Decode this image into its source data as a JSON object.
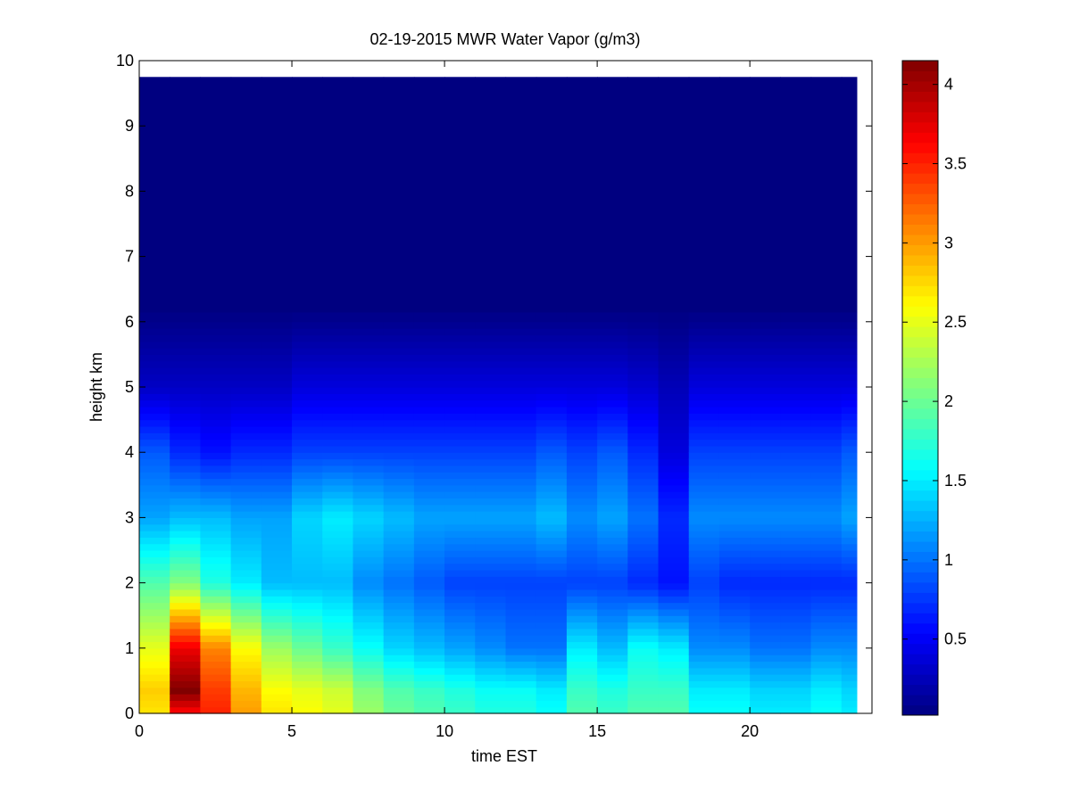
{
  "chart_data": {
    "type": "heatmap",
    "title": "02-19-2015 MWR Water Vapor (g/m3)",
    "xlabel": "time EST",
    "ylabel": "height km",
    "xlim": [
      0,
      24
    ],
    "ylim": [
      0,
      10
    ],
    "x_ticks": [
      "0",
      "5",
      "10",
      "15",
      "20"
    ],
    "y_ticks": [
      "0",
      "1",
      "2",
      "3",
      "4",
      "5",
      "6",
      "7",
      "8",
      "9",
      "10"
    ],
    "colorbar": {
      "colormap": "jet",
      "range": [
        0.02,
        4.15
      ],
      "ticks": [
        "0.5",
        "1",
        "1.5",
        "2",
        "2.5",
        "3",
        "3.5",
        "4"
      ]
    },
    "grid": false,
    "time_hours": [
      0,
      1,
      2,
      3,
      4,
      5,
      6,
      7,
      8,
      9,
      10,
      11,
      12,
      13,
      14,
      15,
      16,
      17,
      18,
      19,
      20,
      21,
      22,
      23
    ],
    "height_km": [
      0.05,
      0.15,
      0.25,
      0.35,
      0.45,
      0.55,
      0.65,
      0.75,
      0.85,
      0.95,
      1.05,
      1.15,
      1.25,
      1.35,
      1.45,
      1.55,
      1.65,
      1.75,
      1.85,
      1.95,
      2.05,
      2.15,
      2.25,
      2.35,
      2.45,
      2.55,
      2.65,
      2.75,
      2.85,
      2.95,
      3.05,
      3.15,
      3.25,
      3.35,
      3.45,
      3.55,
      3.65,
      3.75,
      3.85,
      3.95,
      4.05,
      4.15,
      4.25,
      4.35,
      4.45,
      4.55,
      4.65,
      4.75,
      4.85,
      4.95,
      5.05,
      5.15,
      5.25,
      5.35,
      5.45,
      5.55,
      5.65,
      5.75,
      5.85,
      5.95,
      6.05,
      6.25,
      6.75,
      7.25,
      7.75,
      8.25,
      8.75,
      9.25,
      9.75
    ],
    "profiles": {
      "surface": [
        2.7,
        3.6,
        3.5,
        3.0,
        2.7,
        2.6,
        2.5,
        2.2,
        2.0,
        1.9,
        1.8,
        1.7,
        1.7,
        1.6,
        1.9,
        1.8,
        1.9,
        1.9,
        1.6,
        1.6,
        1.5,
        1.5,
        1.6,
        1.5
      ],
      "peak_value": [
        2.8,
        4.15,
        3.4,
        2.9,
        2.6,
        2.5,
        2.4,
        2.1,
        1.9,
        1.8,
        1.7,
        1.6,
        1.6,
        1.5,
        1.8,
        1.7,
        1.8,
        1.8,
        1.5,
        1.5,
        1.4,
        1.4,
        1.5,
        1.4
      ],
      "note_value_at_1km": [
        2.5,
        3.7,
        3.1,
        2.6,
        2.2,
        2.0,
        1.8,
        1.6,
        1.4,
        1.3,
        1.2,
        1.1,
        1.0,
        1.0,
        1.5,
        1.3,
        1.6,
        1.5,
        1.1,
        1.1,
        1.0,
        1.0,
        1.1,
        1.1
      ],
      "value_at_2km": [
        1.9,
        2.1,
        1.7,
        1.5,
        1.3,
        1.3,
        1.3,
        1.1,
        1.0,
        0.9,
        0.8,
        0.8,
        0.8,
        0.8,
        0.8,
        0.8,
        0.7,
        0.6,
        0.8,
        0.7,
        0.7,
        0.7,
        0.7,
        0.7
      ],
      "value_at_3km": [
        1.2,
        1.3,
        1.3,
        1.2,
        1.2,
        1.4,
        1.5,
        1.4,
        1.3,
        1.2,
        1.2,
        1.2,
        1.2,
        1.3,
        1.1,
        1.2,
        1.0,
        0.7,
        1.1,
        1.1,
        1.1,
        1.1,
        1.1,
        1.2
      ],
      "value_at_4km": [
        0.9,
        0.7,
        0.6,
        0.7,
        0.7,
        0.8,
        0.8,
        0.8,
        0.8,
        0.8,
        0.8,
        0.8,
        0.8,
        0.9,
        0.8,
        0.9,
        0.7,
        0.4,
        0.8,
        0.8,
        0.8,
        0.8,
        0.8,
        0.9
      ],
      "value_at_5km": [
        0.3,
        0.3,
        0.3,
        0.3,
        0.3,
        0.4,
        0.4,
        0.4,
        0.4,
        0.4,
        0.4,
        0.4,
        0.4,
        0.4,
        0.4,
        0.4,
        0.35,
        0.25,
        0.4,
        0.4,
        0.4,
        0.4,
        0.4,
        0.4
      ],
      "value_above_6km": 0.02
    }
  }
}
